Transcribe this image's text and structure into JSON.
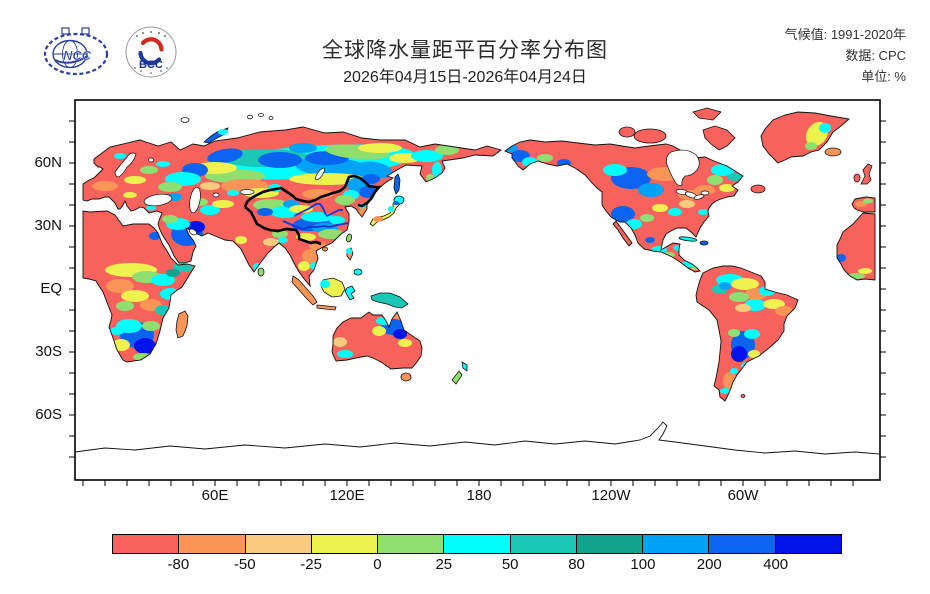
{
  "header": {
    "title": "全球降水量距平百分率分布图",
    "subtitle": "2026年04月15日-2026年04月24日",
    "meta": [
      {
        "label": "气候值:",
        "value": "1991-2020年"
      },
      {
        "label": "数据:",
        "value": "CPC"
      },
      {
        "label": "单位:",
        "value": "%"
      }
    ],
    "logos": [
      {
        "name": "NCC"
      },
      {
        "name": "BCC"
      }
    ]
  },
  "map": {
    "y_axis_labels": [
      {
        "label": "60N",
        "lat": 60
      },
      {
        "label": "30N",
        "lat": 30
      },
      {
        "label": "EQ",
        "lat": 0
      },
      {
        "label": "30S",
        "lat": -30
      },
      {
        "label": "60S",
        "lat": -60
      }
    ],
    "x_axis_labels": [
      {
        "label": "60E",
        "lon": 60
      },
      {
        "label": "120E",
        "lon": 120
      },
      {
        "label": "180",
        "lon": 180
      },
      {
        "label": "120W",
        "lon": 240
      },
      {
        "label": "60W",
        "lon": 300
      }
    ]
  },
  "legend": {
    "boundary_labels": [
      "-80",
      "-50",
      "-25",
      "0",
      "25",
      "50",
      "80",
      "100",
      "200",
      "400"
    ],
    "colors": [
      "#F8625C",
      "#FB9457",
      "#FACB7C",
      "#EDF24E",
      "#8FDF70",
      "#00FFFF",
      "#1AC8B5",
      "#11A18C",
      "#00A2F5",
      "#0A64EF",
      "#0013E8"
    ]
  }
}
